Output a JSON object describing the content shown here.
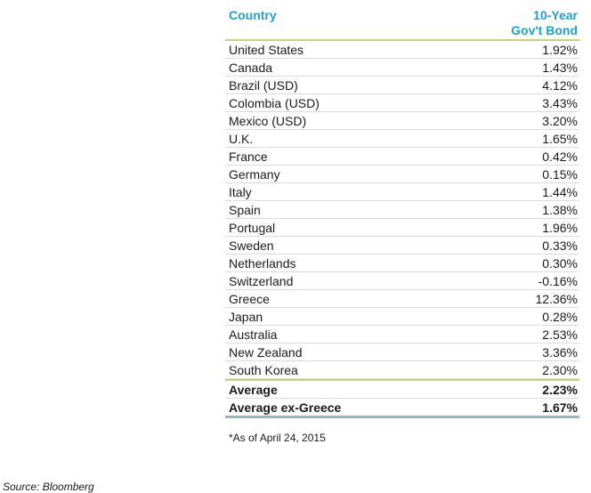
{
  "table": {
    "header": {
      "country": "Country",
      "bond_line1": "10-Year",
      "bond_line2": "Gov't Bond"
    },
    "rows": [
      {
        "country": "United States",
        "value": "1.92%"
      },
      {
        "country": "Canada",
        "value": "1.43%"
      },
      {
        "country": "Brazil (USD)",
        "value": "4.12%"
      },
      {
        "country": "Colombia (USD)",
        "value": "3.43%"
      },
      {
        "country": "Mexico (USD)",
        "value": "3.20%"
      },
      {
        "country": "U.K.",
        "value": "1.65%"
      },
      {
        "country": "France",
        "value": "0.42%"
      },
      {
        "country": "Germany",
        "value": "0.15%"
      },
      {
        "country": "Italy",
        "value": "1.44%"
      },
      {
        "country": "Spain",
        "value": "1.38%"
      },
      {
        "country": "Portugal",
        "value": "1.96%"
      },
      {
        "country": "Sweden",
        "value": "0.33%"
      },
      {
        "country": "Netherlands",
        "value": "0.30%"
      },
      {
        "country": "Switzerland",
        "value": "-0.16%"
      },
      {
        "country": "Greece",
        "value": "12.36%"
      },
      {
        "country": "Japan",
        "value": "0.28%"
      },
      {
        "country": "Australia",
        "value": "2.53%"
      },
      {
        "country": "New Zealand",
        "value": "3.36%"
      },
      {
        "country": "South Korea",
        "value": "2.30%"
      }
    ],
    "totals": [
      {
        "label": "Average",
        "value": "2.23%"
      },
      {
        "label": "Average ex-Greece",
        "value": "1.67%"
      }
    ]
  },
  "note": "*As of April 24, 2015",
  "source": "Source: Bloomberg",
  "colors": {
    "header_text": "#1e9fd0",
    "rule": "#c8d27a",
    "bottom_rule": "#8cb8c8"
  }
}
